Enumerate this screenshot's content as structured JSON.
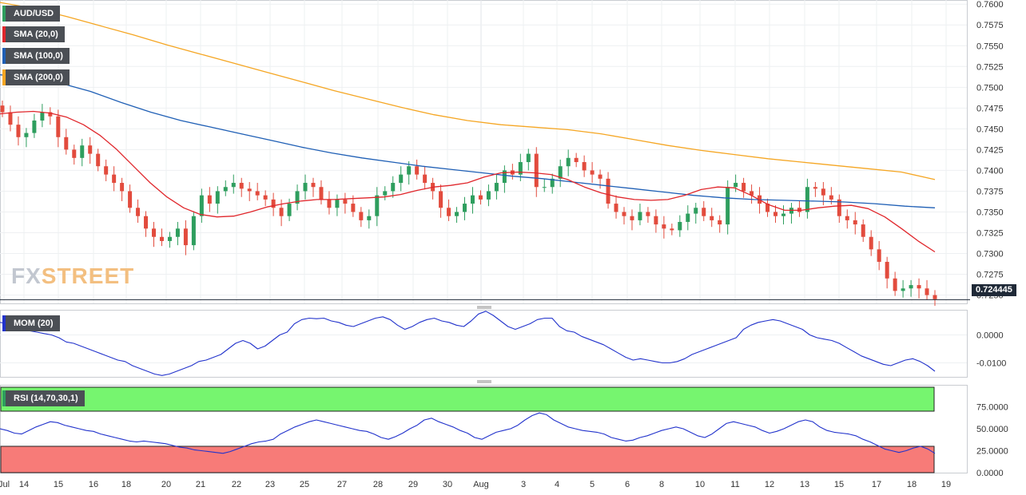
{
  "labels": {
    "symbol": "AUD/USD",
    "sma20": "SMA (20,0)",
    "sma100": "SMA (100,0)",
    "sma200": "SMA (200,0)",
    "mom": "MOM (20)",
    "rsi": "RSI (14,70,30,1)"
  },
  "watermark": {
    "part1": "FX",
    "part2": "STREET"
  },
  "last_price": "0.724445",
  "colors": {
    "bull": "#2e9e5e",
    "bear": "#e24b3d",
    "sma20": "#e0262b",
    "sma100": "#1f5fb5",
    "sma200": "#f5a623",
    "indicator": "#2233cc",
    "rsi_overbought": "#76f56f",
    "rsi_oversold": "#f77b78"
  },
  "chart_data": [
    {
      "type": "line",
      "name": "AUD/USD candlestick price panel",
      "yticks": [
        "0.7600",
        "0.7575",
        "0.7550",
        "0.7525",
        "0.7500",
        "0.7475",
        "0.7450",
        "0.7425",
        "0.7400",
        "0.7375",
        "0.7350",
        "0.7325",
        "0.7300",
        "0.7275",
        "0.7250"
      ],
      "ylim": [
        0.724,
        0.7605
      ],
      "xticks": [
        "Jul",
        "14",
        "15",
        "16",
        "18",
        "20",
        "21",
        "22",
        "23",
        "25",
        "27",
        "28",
        "29",
        "30",
        "Aug",
        "3",
        "4",
        "5",
        "6",
        "8",
        "10",
        "11",
        "12",
        "13",
        "15",
        "17",
        "18",
        "19"
      ],
      "close_series": [
        0.747,
        0.7455,
        0.744,
        0.7445,
        0.746,
        0.747,
        0.7465,
        0.744,
        0.7425,
        0.7415,
        0.743,
        0.742,
        0.7405,
        0.7395,
        0.7385,
        0.7375,
        0.7355,
        0.7345,
        0.733,
        0.732,
        0.7315,
        0.732,
        0.733,
        0.731,
        0.7345,
        0.737,
        0.736,
        0.7375,
        0.738,
        0.7385,
        0.7378,
        0.7375,
        0.737,
        0.7365,
        0.7355,
        0.7345,
        0.736,
        0.7375,
        0.7385,
        0.738,
        0.7365,
        0.7355,
        0.7365,
        0.736,
        0.735,
        0.734,
        0.7345,
        0.737,
        0.7375,
        0.7385,
        0.7395,
        0.7405,
        0.7395,
        0.7385,
        0.7375,
        0.7355,
        0.7345,
        0.735,
        0.736,
        0.737,
        0.7365,
        0.7375,
        0.7385,
        0.74,
        0.7395,
        0.741,
        0.742,
        0.738,
        0.738,
        0.739,
        0.7405,
        0.7415,
        0.741,
        0.74,
        0.7395,
        0.739,
        0.736,
        0.735,
        0.7345,
        0.734,
        0.735,
        0.7345,
        0.7335,
        0.733,
        0.7328,
        0.7338,
        0.7348,
        0.7355,
        0.7345,
        0.734,
        0.7335,
        0.738,
        0.7385,
        0.7375,
        0.737,
        0.736,
        0.735,
        0.7345,
        0.7348,
        0.7355,
        0.735,
        0.738,
        0.7378,
        0.737,
        0.7365,
        0.7345,
        0.734,
        0.7335,
        0.732,
        0.7305,
        0.729,
        0.727,
        0.7255,
        0.7258,
        0.7262,
        0.7258,
        0.725,
        0.7245
      ],
      "sma20": [
        0.7468,
        0.747,
        0.7471,
        0.7469,
        0.7464,
        0.7455,
        0.7442,
        0.7425,
        0.7405,
        0.7385,
        0.7368,
        0.7355,
        0.7347,
        0.7344,
        0.7345,
        0.735,
        0.7356,
        0.736,
        0.7363,
        0.7365,
        0.7365,
        0.7366,
        0.7367,
        0.7368,
        0.7371,
        0.7376,
        0.738,
        0.7382,
        0.7385,
        0.7392,
        0.7397,
        0.7398,
        0.7397,
        0.7395,
        0.7389,
        0.738,
        0.7373,
        0.7368,
        0.7365,
        0.7364,
        0.7365,
        0.737,
        0.7377,
        0.738,
        0.7379,
        0.737,
        0.7359,
        0.7352,
        0.7352,
        0.7355,
        0.7357,
        0.7358,
        0.7354,
        0.7344,
        0.733,
        0.7315,
        0.7302
      ],
      "sma100": [
        0.7515,
        0.7512,
        0.7505,
        0.7495,
        0.7482,
        0.747,
        0.746,
        0.7452,
        0.7444,
        0.7436,
        0.7428,
        0.7421,
        0.7415,
        0.741,
        0.7405,
        0.7401,
        0.7397,
        0.7393,
        0.739,
        0.7386,
        0.7382,
        0.7378,
        0.7374,
        0.737,
        0.7367,
        0.7365,
        0.7364,
        0.7363,
        0.7362,
        0.736,
        0.7357,
        0.7355
      ],
      "sma200": [
        0.7602,
        0.7595,
        0.7585,
        0.7574,
        0.7563,
        0.7551,
        0.754,
        0.7529,
        0.7518,
        0.7507,
        0.7496,
        0.7486,
        0.7476,
        0.7467,
        0.746,
        0.7455,
        0.7452,
        0.7449,
        0.7444,
        0.7437,
        0.743,
        0.7424,
        0.7419,
        0.7414,
        0.741,
        0.7406,
        0.7402,
        0.7398,
        0.7389
      ]
    },
    {
      "type": "line",
      "name": "MOM (20)",
      "yticks": [
        "0.0000",
        "-0.0100"
      ],
      "ylim": [
        -0.015,
        0.009
      ],
      "series": [
        0.0045,
        0.004,
        0.003,
        0.002,
        0.0015,
        0.001,
        0.0005,
        0.0,
        -0.001,
        -0.0025,
        -0.003,
        -0.004,
        -0.005,
        -0.006,
        -0.007,
        -0.008,
        -0.009,
        -0.0095,
        -0.011,
        -0.012,
        -0.013,
        -0.014,
        -0.0145,
        -0.014,
        -0.013,
        -0.012,
        -0.011,
        -0.0095,
        -0.009,
        -0.008,
        -0.007,
        -0.005,
        -0.003,
        -0.002,
        -0.003,
        -0.005,
        -0.004,
        -0.002,
        0.0,
        0.001,
        0.004,
        0.0055,
        0.006,
        0.0058,
        0.006,
        0.005,
        0.0045,
        0.0035,
        0.003,
        0.004,
        0.005,
        0.006,
        0.0065,
        0.0055,
        0.0035,
        0.002,
        0.003,
        0.0045,
        0.0055,
        0.006,
        0.005,
        0.0045,
        0.0035,
        0.003,
        0.005,
        0.0075,
        0.0085,
        0.007,
        0.005,
        0.003,
        0.002,
        0.003,
        0.004,
        0.0055,
        0.006,
        0.006,
        0.003,
        0.0015,
        0.001,
        -0.0005,
        -0.0015,
        -0.0025,
        -0.0035,
        -0.005,
        -0.0065,
        -0.008,
        -0.009,
        -0.0085,
        -0.009,
        -0.0095,
        -0.01,
        -0.01,
        -0.0095,
        -0.0085,
        -0.007,
        -0.006,
        -0.005,
        -0.004,
        -0.003,
        -0.002,
        -0.001,
        0.002,
        0.0035,
        0.0045,
        0.005,
        0.0055,
        0.005,
        0.004,
        0.003,
        0.002,
        0.0,
        -0.001,
        -0.0015,
        -0.002,
        -0.003,
        -0.0045,
        -0.006,
        -0.0075,
        -0.0085,
        -0.0095,
        -0.0105,
        -0.011,
        -0.01,
        -0.009,
        -0.0085,
        -0.0095,
        -0.011,
        -0.013
      ]
    },
    {
      "type": "line",
      "name": "RSI (14,70,30,1)",
      "yticks": [
        "75.0000",
        "50.0000",
        "25.0000",
        "0.0000"
      ],
      "ylim": [
        0,
        100
      ],
      "overbought": 70,
      "oversold": 30,
      "series": [
        50,
        48,
        45,
        44,
        48,
        52,
        55,
        58,
        57,
        54,
        52,
        50,
        48,
        47,
        44,
        42,
        40,
        38,
        36,
        35,
        36,
        35,
        34,
        33,
        31,
        29,
        28,
        26,
        25,
        24,
        23,
        22,
        24,
        27,
        30,
        33,
        35,
        36,
        38,
        44,
        48,
        52,
        55,
        58,
        60,
        58,
        56,
        54,
        52,
        50,
        48,
        47,
        44,
        40,
        38,
        41,
        45,
        50,
        54,
        60,
        62,
        58,
        55,
        52,
        48,
        45,
        40,
        38,
        42,
        46,
        48,
        50,
        54,
        60,
        65,
        68,
        66,
        60,
        56,
        52,
        50,
        48,
        47,
        46,
        44,
        40,
        38,
        36,
        37,
        40,
        42,
        45,
        48,
        50,
        52,
        50,
        46,
        42,
        40,
        44,
        50,
        56,
        58,
        56,
        54,
        52,
        48,
        45,
        47,
        50,
        54,
        58,
        60,
        58,
        52,
        48,
        46,
        45,
        44,
        42,
        38,
        35,
        31,
        27,
        25,
        23,
        25,
        28,
        30,
        27,
        22
      ]
    }
  ]
}
